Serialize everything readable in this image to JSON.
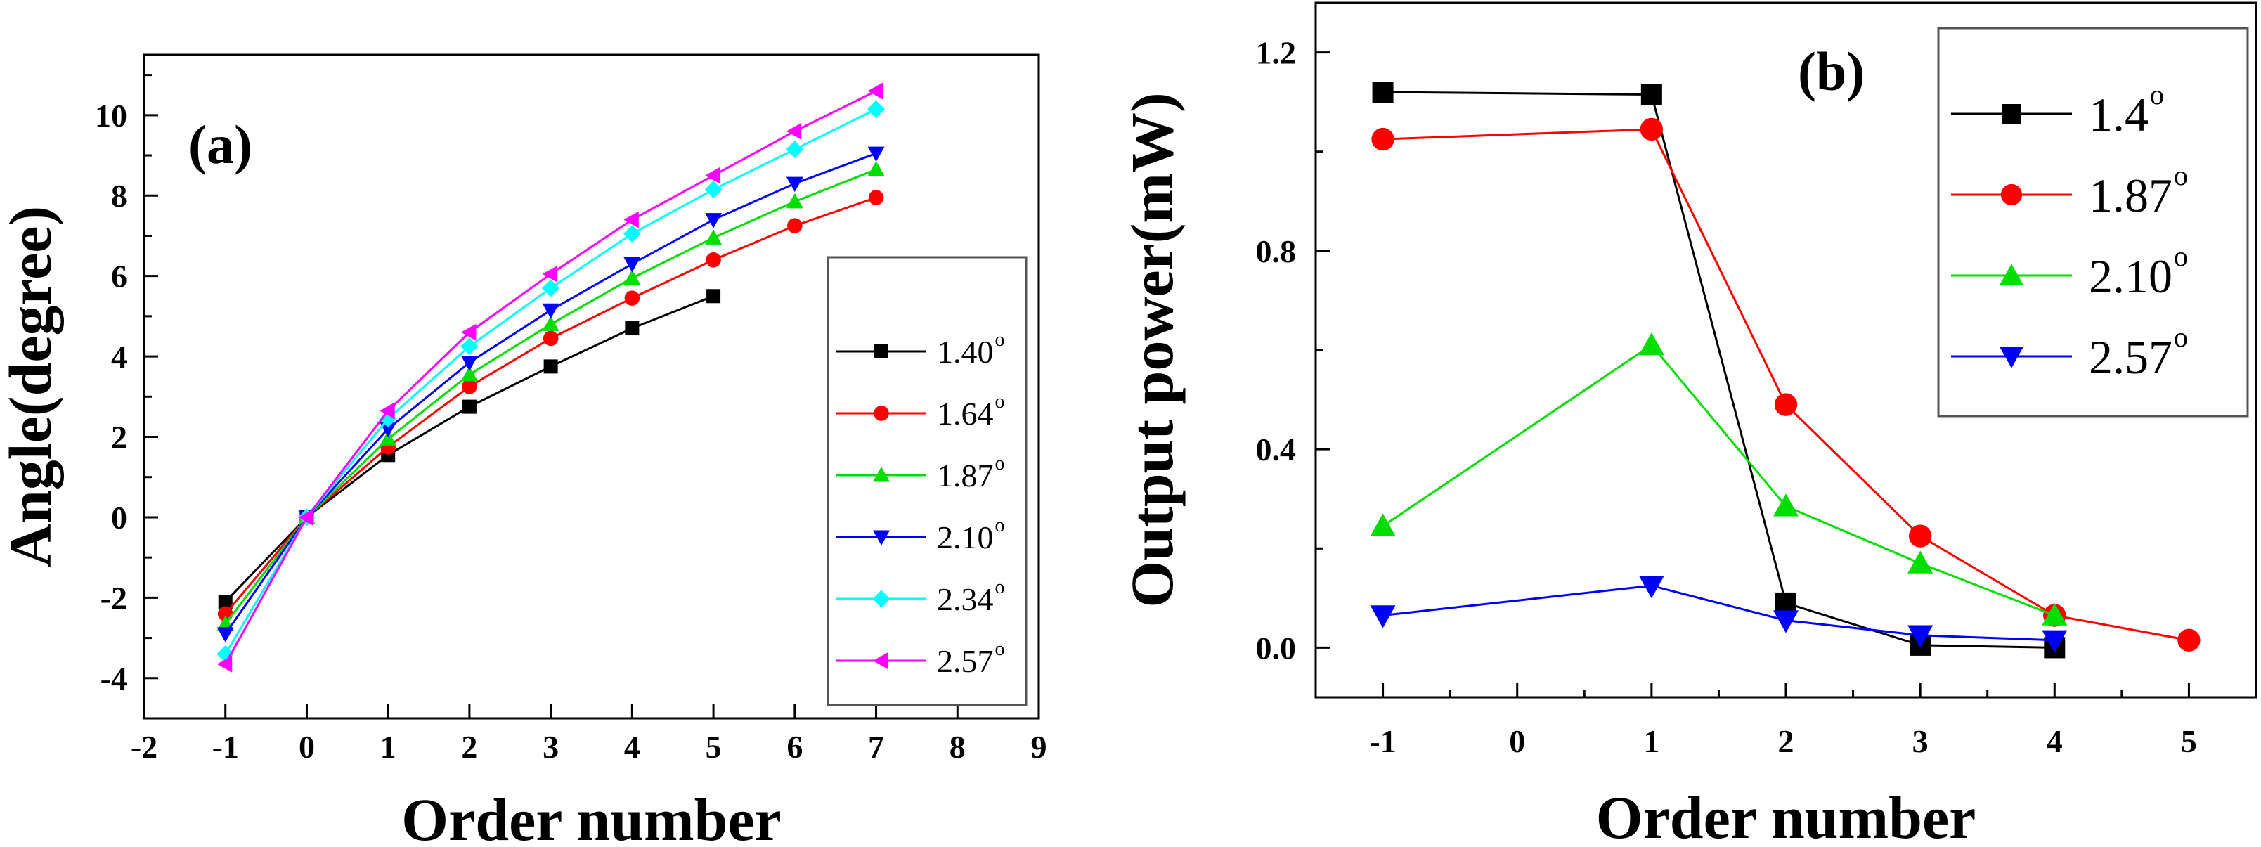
{
  "chart_data": [
    {
      "type": "line",
      "panel_label": "(a)",
      "xlabel": "Order number",
      "ylabel": "Angle(degree)",
      "xlim": [
        -2,
        9
      ],
      "ylim": [
        -5,
        11.5
      ],
      "xticks": [
        "-2",
        "-1",
        "0",
        "1",
        "2",
        "3",
        "4",
        "5",
        "6",
        "7",
        "8",
        "9"
      ],
      "yticks": [
        "-4",
        "-2",
        "0",
        "2",
        "4",
        "6",
        "8",
        "10"
      ],
      "grid": false,
      "legend_position": "right",
      "series": [
        {
          "name": "1.40",
          "degree_mark": "o",
          "color": "#000000",
          "marker": "square",
          "x": [
            -1,
            0,
            1,
            2,
            3,
            4,
            5
          ],
          "y": [
            -2.1,
            0,
            1.55,
            2.75,
            3.75,
            4.7,
            5.5
          ]
        },
        {
          "name": "1.64",
          "degree_mark": "o",
          "color": "#ff0000",
          "marker": "circle",
          "x": [
            -1,
            0,
            1,
            2,
            3,
            4,
            5,
            6,
            7
          ],
          "y": [
            -2.4,
            0,
            1.75,
            3.25,
            4.45,
            5.45,
            6.4,
            7.25,
            7.95
          ]
        },
        {
          "name": "1.87",
          "degree_mark": "o",
          "color": "#00dd00",
          "marker": "triangle-up",
          "x": [
            -1,
            0,
            1,
            2,
            3,
            4,
            5,
            6,
            7
          ],
          "y": [
            -2.65,
            0,
            1.95,
            3.55,
            4.8,
            5.95,
            6.95,
            7.85,
            8.65
          ]
        },
        {
          "name": "2.10",
          "degree_mark": "o",
          "color": "#0000ff",
          "marker": "triangle-down",
          "x": [
            -1,
            0,
            1,
            2,
            3,
            4,
            5,
            6,
            7
          ],
          "y": [
            -2.9,
            0,
            2.2,
            3.85,
            5.15,
            6.3,
            7.4,
            8.3,
            9.05
          ]
        },
        {
          "name": "2.34",
          "degree_mark": "o",
          "color": "#00ffff",
          "marker": "diamond",
          "x": [
            -1,
            0,
            1,
            2,
            3,
            4,
            5,
            6,
            7
          ],
          "y": [
            -3.4,
            0,
            2.45,
            4.25,
            5.7,
            7.05,
            8.15,
            9.15,
            10.15
          ]
        },
        {
          "name": "2.57",
          "degree_mark": "o",
          "color": "#ff00ff",
          "marker": "triangle-left",
          "x": [
            -1,
            0,
            1,
            2,
            3,
            4,
            5,
            6,
            7
          ],
          "y": [
            -3.65,
            0,
            2.65,
            4.6,
            6.05,
            7.4,
            8.5,
            9.6,
            10.6
          ]
        }
      ]
    },
    {
      "type": "line",
      "panel_label": "(b)",
      "xlabel": "Order number",
      "ylabel": "Output power(mW)",
      "xlim": [
        -1.5,
        5.5
      ],
      "ylim": [
        -0.1,
        1.3
      ],
      "xticks": [
        "-1",
        "0",
        "1",
        "2",
        "3",
        "4",
        "5"
      ],
      "yticks": [
        "0.0",
        "0.4",
        "0.8",
        "1.2"
      ],
      "grid": false,
      "legend_position": "top-right",
      "series": [
        {
          "name": "1.4",
          "degree_mark": "o",
          "color": "#000000",
          "marker": "square",
          "x": [
            -1,
            1,
            2,
            3,
            4
          ],
          "y": [
            1.12,
            1.115,
            0.09,
            0.005,
            0.0
          ]
        },
        {
          "name": "1.87",
          "degree_mark": "o",
          "color": "#ff0000",
          "marker": "circle",
          "x": [
            -1,
            1,
            2,
            3,
            4,
            5
          ],
          "y": [
            1.025,
            1.045,
            0.49,
            0.225,
            0.065,
            0.015
          ]
        },
        {
          "name": "2.10",
          "degree_mark": "o",
          "color": "#00dd00",
          "marker": "triangle-up",
          "x": [
            -1,
            1,
            2,
            3,
            4
          ],
          "y": [
            0.245,
            0.61,
            0.285,
            0.17,
            0.065
          ]
        },
        {
          "name": "2.57",
          "degree_mark": "o",
          "color": "#0000ff",
          "marker": "triangle-down",
          "x": [
            -1,
            1,
            2,
            3,
            4
          ],
          "y": [
            0.065,
            0.125,
            0.055,
            0.025,
            0.015
          ]
        }
      ]
    }
  ]
}
